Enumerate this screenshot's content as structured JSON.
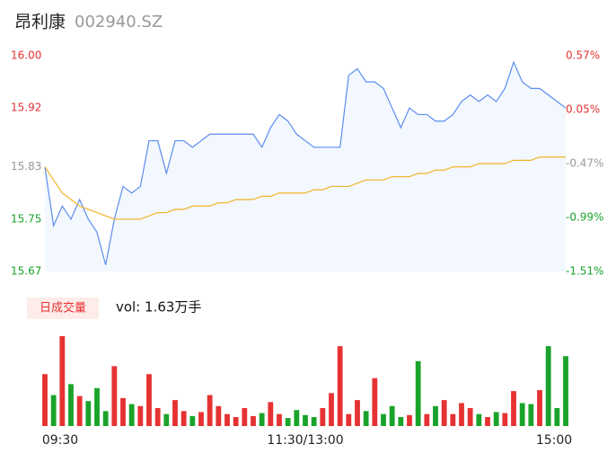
{
  "chart_data": {
    "type": "intraday",
    "title": "昂利康",
    "subtitle": "002940.SZ",
    "price_color": "#5b8def",
    "avg_color": "#f0b429",
    "up_color": "#e63232",
    "down_color": "#1aa32a",
    "x": [
      0,
      4,
      8,
      12,
      16,
      20,
      24,
      28,
      32,
      36,
      40,
      44,
      48,
      52,
      56,
      60,
      64,
      68,
      72,
      76,
      80,
      84,
      88,
      92,
      96,
      100,
      104,
      108,
      112,
      116,
      120,
      124,
      128,
      132,
      136,
      140,
      144,
      148,
      152,
      156,
      160,
      164,
      168,
      172,
      176,
      180,
      184,
      188,
      192,
      196,
      200,
      204,
      208,
      212,
      216,
      220,
      224,
      228,
      232,
      236,
      240
    ],
    "xlim": [
      0,
      240
    ],
    "xticks": [
      {
        "value": 0,
        "label": "09:30"
      },
      {
        "value": 120,
        "label": "11:30/13:00"
      },
      {
        "value": 240,
        "label": "15:00"
      }
    ],
    "series": [
      {
        "name": "price",
        "values": [
          15.83,
          15.74,
          15.77,
          15.75,
          15.78,
          15.75,
          15.73,
          15.68,
          15.75,
          15.8,
          15.79,
          15.8,
          15.87,
          15.87,
          15.82,
          15.87,
          15.87,
          15.86,
          15.87,
          15.88,
          15.88,
          15.88,
          15.88,
          15.88,
          15.88,
          15.86,
          15.89,
          15.91,
          15.9,
          15.88,
          15.87,
          15.86,
          15.86,
          15.86,
          15.86,
          15.97,
          15.98,
          15.96,
          15.96,
          15.95,
          15.92,
          15.89,
          15.92,
          15.91,
          15.91,
          15.9,
          15.9,
          15.91,
          15.93,
          15.94,
          15.93,
          15.94,
          15.93,
          15.95,
          15.99,
          15.96,
          15.95,
          15.95,
          15.94,
          15.93,
          15.92
        ]
      },
      {
        "name": "average",
        "values": [
          15.83,
          15.81,
          15.79,
          15.78,
          15.77,
          15.765,
          15.76,
          15.755,
          15.75,
          15.75,
          15.75,
          15.75,
          15.755,
          15.76,
          15.76,
          15.765,
          15.765,
          15.77,
          15.77,
          15.77,
          15.775,
          15.775,
          15.78,
          15.78,
          15.78,
          15.785,
          15.785,
          15.79,
          15.79,
          15.79,
          15.79,
          15.795,
          15.795,
          15.8,
          15.8,
          15.8,
          15.805,
          15.81,
          15.81,
          15.81,
          15.815,
          15.815,
          15.815,
          15.82,
          15.82,
          15.825,
          15.825,
          15.83,
          15.83,
          15.83,
          15.835,
          15.835,
          15.835,
          15.835,
          15.84,
          15.84,
          15.84,
          15.845,
          15.845,
          15.845,
          15.845
        ]
      }
    ],
    "ylim": [
      15.67,
      16.0
    ],
    "yticks": [
      {
        "value": 16.0,
        "label": "16.00"
      },
      {
        "value": 15.92,
        "label": "15.92"
      },
      {
        "value": 15.83,
        "label": "15.83"
      },
      {
        "value": 15.75,
        "label": "15.75"
      },
      {
        "value": 15.67,
        "label": "15.67"
      }
    ],
    "y2lim": [
      -1.51,
      0.57
    ],
    "y2ticks": [
      {
        "value": 0.57,
        "label": "0.57%"
      },
      {
        "value": 0.05,
        "label": "0.05%"
      },
      {
        "value": -0.47,
        "label": "-0.47%"
      },
      {
        "value": -0.99,
        "label": "-0.99%"
      },
      {
        "value": -1.51,
        "label": "-1.51%"
      }
    ],
    "volume_title": "日成交量",
    "volume_label": "vol: 1.63万手",
    "volumes": [
      520,
      310,
      900,
      420,
      300,
      250,
      380,
      150,
      600,
      280,
      220,
      200,
      520,
      180,
      120,
      260,
      150,
      100,
      140,
      310,
      200,
      120,
      90,
      180,
      100,
      130,
      240,
      120,
      80,
      160,
      110,
      90,
      180,
      330,
      800,
      120,
      260,
      150,
      480,
      120,
      200,
      90,
      110,
      650,
      120,
      200,
      260,
      120,
      230,
      180,
      120,
      90,
      140,
      130,
      350,
      230,
      220,
      360,
      800,
      180,
      700
    ]
  }
}
